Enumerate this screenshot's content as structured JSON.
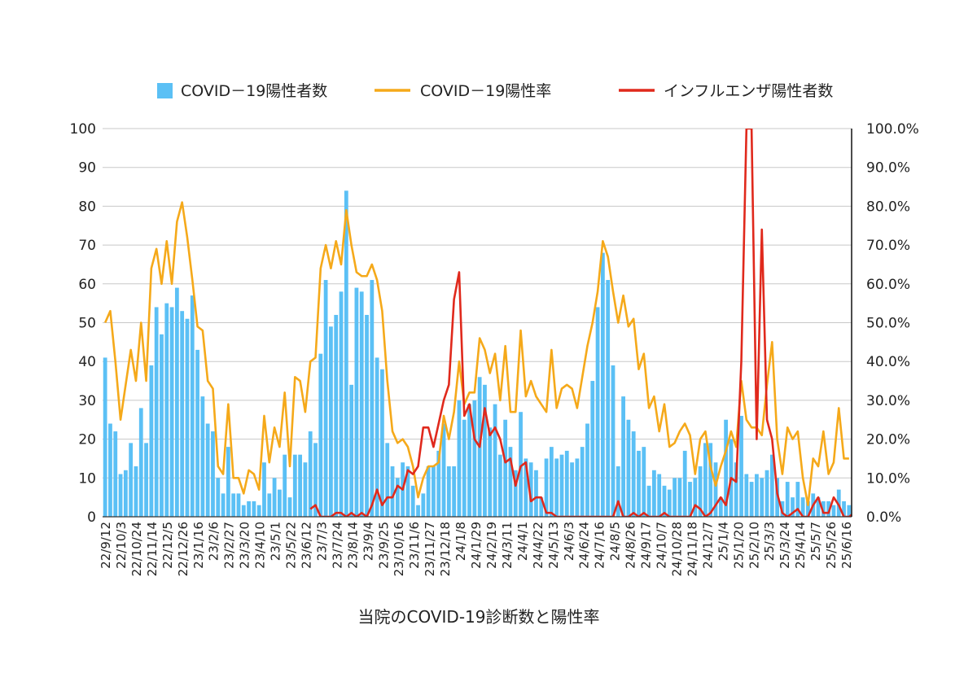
{
  "chart_data": {
    "type": "bar",
    "title": "当院のCOVID-19診断数と陽性率",
    "y_left": {
      "range": [
        0,
        100
      ],
      "ticks": [
        "0",
        "10",
        "20",
        "30",
        "40",
        "50",
        "60",
        "70",
        "80",
        "90",
        "100"
      ]
    },
    "y_right": {
      "range": [
        0,
        1
      ],
      "ticks": [
        "0.0%",
        "10.0%",
        "20.0%",
        "30.0%",
        "40.0%",
        "50.0%",
        "60.0%",
        "70.0%",
        "80.0%",
        "90.0%",
        "100.0%"
      ]
    },
    "grid": true,
    "legend": {
      "placement": "top",
      "items": [
        {
          "name": "COVID－19陽性者数",
          "type": "bar",
          "color": "#5bc0f5"
        },
        {
          "name": "COVID－19陽性率",
          "type": "line",
          "color": "#f5a91a"
        },
        {
          "name": "インフルエンザ陽性者数",
          "type": "line",
          "color": "#e0291c"
        }
      ]
    },
    "x_tick_labels": [
      "22/9/12",
      "22/10/3",
      "22/10/24",
      "22/11/14",
      "22/12/5",
      "22/12/26",
      "23/1/16",
      "23/2/6",
      "23/2/27",
      "23/3/20",
      "23/4/10",
      "23/5/1",
      "23/5/22",
      "23/6/12",
      "23/7/3",
      "23/7/24",
      "23/8/14",
      "23/9/4",
      "23/9/25",
      "23/10/16",
      "23/11/6",
      "23/11/27",
      "23/12/18",
      "24/1/8",
      "24/1/29",
      "24/2/19",
      "24/3/11",
      "24/4/1",
      "24/4/22",
      "24/5/13",
      "24/6/3",
      "24/6/24",
      "24/7/16",
      "24/8/5",
      "24/8/26",
      "24/9/17",
      "24/10/7",
      "24/10/28",
      "24/11/18",
      "24/12/7",
      "25/1/4",
      "25/1/20",
      "25/2/10",
      "25/3/3",
      "25/3/24",
      "25/4/14",
      "25/5/7",
      "25/5/26",
      "25/6/16"
    ],
    "series": [
      {
        "name": "COVID－19陽性者数",
        "axis": "left",
        "color": "#5bc0f5",
        "values": [
          41,
          24,
          22,
          11,
          12,
          19,
          13,
          28,
          19,
          39,
          54,
          47,
          55,
          54,
          59,
          53,
          51,
          57,
          43,
          31,
          24,
          22,
          10,
          6,
          18,
          6,
          6,
          3,
          4,
          4,
          3,
          14,
          6,
          10,
          7,
          16,
          5,
          16,
          16,
          14,
          22,
          19,
          42,
          61,
          49,
          52,
          58,
          84,
          34,
          59,
          58,
          52,
          61,
          41,
          38,
          19,
          13,
          10,
          14,
          13,
          8,
          3,
          6,
          13,
          13,
          17,
          24,
          13,
          13,
          30,
          25,
          29,
          30,
          36,
          34,
          23,
          29,
          16,
          25,
          18,
          12,
          27,
          15,
          14,
          12,
          5,
          15,
          18,
          15,
          16,
          17,
          14,
          15,
          18,
          24,
          35,
          54,
          68,
          61,
          39,
          13,
          31,
          25,
          22,
          17,
          18,
          8,
          12,
          11,
          8,
          7,
          10,
          10,
          17,
          9,
          10,
          13,
          19,
          19,
          14,
          5,
          25,
          20,
          14,
          26,
          11,
          9,
          11,
          10,
          12,
          16,
          10,
          4,
          9,
          5,
          9,
          5,
          4,
          6,
          5,
          4,
          4,
          3,
          7,
          4,
          3
        ]
      },
      {
        "name": "COVID－19陽性率",
        "axis": "right",
        "color": "#f5a91a",
        "values": [
          0.5,
          0.53,
          0.4,
          0.25,
          0.34,
          0.43,
          0.35,
          0.5,
          0.35,
          0.64,
          0.69,
          0.6,
          0.71,
          0.6,
          0.76,
          0.81,
          0.72,
          0.61,
          0.49,
          0.48,
          0.35,
          0.33,
          0.13,
          0.11,
          0.29,
          0.1,
          0.1,
          0.06,
          0.12,
          0.11,
          0.07,
          0.26,
          0.14,
          0.23,
          0.18,
          0.32,
          0.13,
          0.36,
          0.35,
          0.27,
          0.4,
          0.41,
          0.64,
          0.7,
          0.64,
          0.71,
          0.65,
          0.79,
          0.7,
          0.63,
          0.62,
          0.62,
          0.65,
          0.61,
          0.53,
          0.35,
          0.22,
          0.19,
          0.2,
          0.18,
          0.13,
          0.05,
          0.1,
          0.13,
          0.13,
          0.14,
          0.26,
          0.2,
          0.27,
          0.4,
          0.29,
          0.32,
          0.32,
          0.46,
          0.43,
          0.37,
          0.42,
          0.3,
          0.44,
          0.27,
          0.27,
          0.48,
          0.31,
          0.35,
          0.31,
          0.29,
          0.27,
          0.43,
          0.28,
          0.33,
          0.34,
          0.33,
          0.28,
          0.36,
          0.44,
          0.5,
          0.58,
          0.71,
          0.67,
          0.58,
          0.5,
          0.57,
          0.49,
          0.51,
          0.38,
          0.42,
          0.28,
          0.31,
          0.22,
          0.29,
          0.18,
          0.19,
          0.22,
          0.24,
          0.21,
          0.11,
          0.2,
          0.22,
          0.13,
          0.08,
          0.13,
          0.17,
          0.22,
          0.18,
          0.35,
          0.25,
          0.23,
          0.23,
          0.21,
          0.34,
          0.45,
          0.2,
          0.11,
          0.23,
          0.2,
          0.22,
          0.1,
          0.03,
          0.15,
          0.13,
          0.22,
          0.11,
          0.14,
          0.28,
          0.15,
          0.15
        ]
      },
      {
        "name": "インフルエンザ陽性者数",
        "axis": "left",
        "color": "#e0291c",
        "start_index": 40,
        "values": [
          2,
          3,
          0,
          0,
          0,
          1,
          1,
          0,
          1,
          0,
          1,
          0,
          3,
          7,
          3,
          5,
          5,
          8,
          7,
          12,
          11,
          13,
          23,
          23,
          18,
          24,
          30,
          34,
          56,
          63,
          26,
          29,
          20,
          18,
          28,
          21,
          23,
          20,
          14,
          15,
          8,
          13,
          14,
          4,
          5,
          5,
          1,
          1,
          0,
          0,
          0,
          0,
          0,
          0,
          0,
          0,
          0,
          0,
          0,
          0,
          4,
          0,
          0,
          1,
          0,
          1,
          0,
          0,
          0,
          1,
          0,
          0,
          0,
          0,
          0,
          3,
          2,
          0,
          1,
          3,
          5,
          3,
          10,
          9,
          40,
          100,
          100,
          20,
          74,
          25,
          20,
          6,
          1,
          0,
          1,
          2,
          0,
          0,
          3,
          5,
          1,
          1,
          5,
          3,
          0,
          0,
          1,
          2,
          0,
          1,
          0,
          0,
          0,
          0
        ]
      }
    ]
  }
}
